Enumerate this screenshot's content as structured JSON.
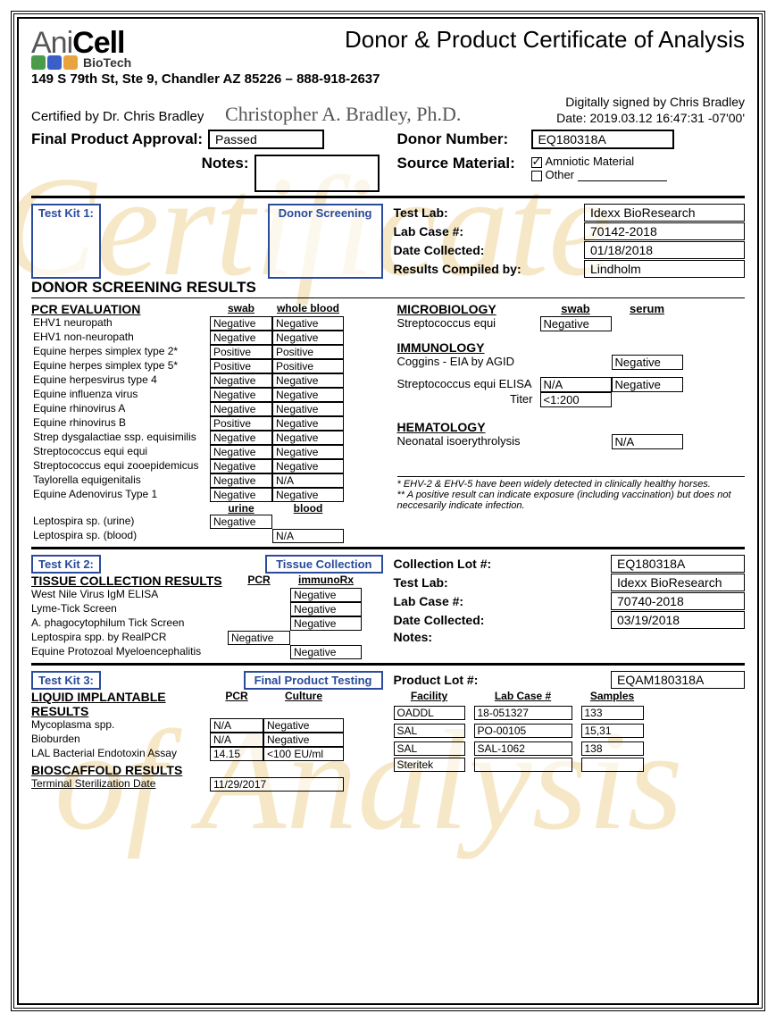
{
  "company": {
    "logo_part1": "Ani",
    "logo_part2": "Cell",
    "logo_sub": "BioTech",
    "address": "149 S 79th St, Ste 9, Chandler AZ 85226 – 888-918-2637"
  },
  "doc_title": "Donor & Product Certificate of Analysis",
  "certified_by_label": "Certified by Dr. Chris Bradley",
  "signature_script": "Christopher A. Bradley, Ph.D.",
  "digital_sig": {
    "line1": "Digitally signed by Chris Bradley",
    "line2": "Date: 2019.03.12 16:47:31 -07'00'"
  },
  "approval": {
    "label": "Final Product Approval:",
    "value": "Passed"
  },
  "donor_number": {
    "label": "Donor Number:",
    "value": "EQ180318A"
  },
  "notes_label": "Notes:",
  "notes_value": "",
  "source_material": {
    "label": "Source Material:",
    "opt1": "Amniotic Material",
    "opt1_checked": true,
    "opt2": "Other",
    "opt2_checked": false
  },
  "testkit1": {
    "label": "Test Kit 1:",
    "name": "Donor Screening",
    "lab": {
      "label": "Test Lab:",
      "value": "Idexx BioResearch"
    },
    "case": {
      "label": "Lab Case #:",
      "value": "70142-2018"
    },
    "date": {
      "label": "Date Collected:",
      "value": "01/18/2018"
    },
    "compiled": {
      "label": "Results Compiled by:",
      "value": "Lindholm"
    }
  },
  "donor_results_heading": "DONOR SCREENING RESULTS",
  "pcr": {
    "heading": "PCR EVALUATION",
    "col1": "swab",
    "col2": "whole blood",
    "rows": [
      {
        "n": "EHV1 neuropath",
        "a": "Negative",
        "b": "Negative"
      },
      {
        "n": "EHV1 non-neuropath",
        "a": "Negative",
        "b": "Negative"
      },
      {
        "n": "Equine herpes simplex type 2*",
        "a": "Positive",
        "b": "Positive"
      },
      {
        "n": "Equine herpes simplex type 5*",
        "a": "Positive",
        "b": "Positive"
      },
      {
        "n": "Equine herpesvirus type 4",
        "a": "Negative",
        "b": "Negative"
      },
      {
        "n": "Equine influenza virus",
        "a": "Negative",
        "b": "Negative"
      },
      {
        "n": "Equine rhinovirus A",
        "a": "Negative",
        "b": "Negative"
      },
      {
        "n": "Equine rhinovirus B",
        "a": "Positive",
        "b": "Negative"
      },
      {
        "n": "Strep dysgalactiae ssp. equisimilis",
        "a": "Negative",
        "b": "Negative"
      },
      {
        "n": "Streptococcus equi equi",
        "a": "Negative",
        "b": "Negative"
      },
      {
        "n": "Streptococcus equi zooepidemicus",
        "a": "Negative",
        "b": "Negative"
      },
      {
        "n": "Taylorella equigenitalis",
        "a": "Negative",
        "b": "N/A"
      },
      {
        "n": "Equine Adenovirus Type 1",
        "a": "Negative",
        "b": "Negative"
      }
    ],
    "sub_col1": "urine",
    "sub_col2": "blood",
    "subrows": [
      {
        "n": "Leptospira sp. (urine)",
        "a": "Negative",
        "b": ""
      },
      {
        "n": "Leptospira sp. (blood)",
        "a": "",
        "b": "N/A"
      }
    ]
  },
  "micro": {
    "heading": "MICROBIOLOGY",
    "col1": "swab",
    "col2": "serum",
    "row1_name": "Streptococcus equi",
    "row1_val": "Negative"
  },
  "immuno": {
    "heading": "IMMUNOLOGY",
    "row1_name": "Coggins - EIA by AGID",
    "row1_val": "Negative",
    "row2_name": "Streptococcus equi ELISA",
    "row2_a": "N/A",
    "row2_b": "Negative",
    "titer_label": "Titer",
    "titer_val": "<1:200"
  },
  "hema": {
    "heading": "HEMATOLOGY",
    "row1_name": "Neonatal isoerythrolysis",
    "row1_val": "N/A"
  },
  "footnote": {
    "line1": "* EHV-2 & EHV-5 have been widely detected in clinically healthy horses.",
    "line2": "** A positive result can indicate exposure (including vaccination) but does not neccesarily indicate infection."
  },
  "testkit2": {
    "label": "Test Kit 2:",
    "name": "Tissue Collection",
    "lot": {
      "label": "Collection Lot #:",
      "value": "EQ180318A"
    },
    "lab": {
      "label": "Test Lab:",
      "value": "Idexx BioResearch"
    },
    "case": {
      "label": "Lab Case #:",
      "value": "70740-2018"
    },
    "date": {
      "label": "Date Collected:",
      "value": "03/19/2018"
    },
    "notes": {
      "label": "Notes:",
      "value": ""
    }
  },
  "tissue": {
    "heading": "TISSUE COLLECTION RESULTS",
    "col1": "PCR",
    "col2": "immunoRx",
    "rows": [
      {
        "n": "West Nile Virus IgM ELISA",
        "a": "",
        "b": "Negative"
      },
      {
        "n": "Lyme-Tick Screen",
        "a": "",
        "b": "Negative"
      },
      {
        "n": "A. phagocytophilum Tick Screen",
        "a": "",
        "b": "Negative"
      },
      {
        "n": "Leptospira spp. by RealPCR",
        "a": "Negative",
        "b": ""
      },
      {
        "n": "Equine Protozoal Myeloencephalitis",
        "a": "",
        "b": "Negative"
      }
    ]
  },
  "testkit3": {
    "label": "Test Kit 3:",
    "name": "Final Product Testing",
    "lot": {
      "label": "Product Lot #:",
      "value": "EQAM180318A"
    }
  },
  "liquid": {
    "heading": "LIQUID IMPLANTABLE RESULTS",
    "col1": "PCR",
    "col2": "Culture",
    "rows": [
      {
        "n": "Mycoplasma spp.",
        "a": "N/A",
        "b": "Negative"
      },
      {
        "n": "Bioburden",
        "a": "N/A",
        "b": "Negative"
      },
      {
        "n": "LAL Bacterial Endotoxin Assay",
        "a": "14.15",
        "b": "<100 EU/ml"
      }
    ]
  },
  "facility": {
    "col1": "Facility",
    "col2": "Lab Case #",
    "col3": "Samples",
    "rows": [
      {
        "a": "OADDL",
        "b": "18-051327",
        "c": "133"
      },
      {
        "a": "SAL",
        "b": "PO-00105",
        "c": "15,31"
      },
      {
        "a": "SAL",
        "b": "SAL-1062",
        "c": "138"
      }
    ]
  },
  "bioscaffold": {
    "heading": "BIOSCAFFOLD RESULTS",
    "row_name": "Terminal Sterilization Date",
    "row_val": "11/29/2017",
    "facility": "Steritek"
  }
}
